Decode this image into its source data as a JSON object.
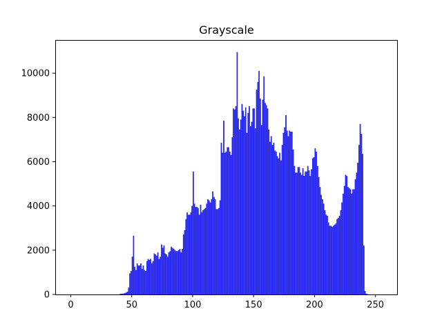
{
  "chart_data": {
    "type": "bar",
    "title": "Grayscale",
    "xlabel": "",
    "ylabel": "",
    "xlim": [
      -12.75,
      267.75
    ],
    "ylim": [
      0,
      11500
    ],
    "xticks": [
      0,
      50,
      100,
      150,
      200,
      250
    ],
    "yticks": [
      0,
      2000,
      4000,
      6000,
      8000,
      10000
    ],
    "grid": false,
    "legend": "none",
    "bar_color": "#0000ff",
    "bar_edge_color": "#1a1acc",
    "x": [
      0,
      1,
      2,
      3,
      4,
      5,
      6,
      7,
      8,
      9,
      10,
      11,
      12,
      13,
      14,
      15,
      16,
      17,
      18,
      19,
      20,
      21,
      22,
      23,
      24,
      25,
      26,
      27,
      28,
      29,
      30,
      31,
      32,
      33,
      34,
      35,
      36,
      37,
      38,
      39,
      40,
      41,
      42,
      43,
      44,
      45,
      46,
      47,
      48,
      49,
      50,
      51,
      52,
      53,
      54,
      55,
      56,
      57,
      58,
      59,
      60,
      61,
      62,
      63,
      64,
      65,
      66,
      67,
      68,
      69,
      70,
      71,
      72,
      73,
      74,
      75,
      76,
      77,
      78,
      79,
      80,
      81,
      82,
      83,
      84,
      85,
      86,
      87,
      88,
      89,
      90,
      91,
      92,
      93,
      94,
      95,
      96,
      97,
      98,
      99,
      100,
      101,
      102,
      103,
      104,
      105,
      106,
      107,
      108,
      109,
      110,
      111,
      112,
      113,
      114,
      115,
      116,
      117,
      118,
      119,
      120,
      121,
      122,
      123,
      124,
      125,
      126,
      127,
      128,
      129,
      130,
      131,
      132,
      133,
      134,
      135,
      136,
      137,
      138,
      139,
      140,
      141,
      142,
      143,
      144,
      145,
      146,
      147,
      148,
      149,
      150,
      151,
      152,
      153,
      154,
      155,
      156,
      157,
      158,
      159,
      160,
      161,
      162,
      163,
      164,
      165,
      166,
      167,
      168,
      169,
      170,
      171,
      172,
      173,
      174,
      175,
      176,
      177,
      178,
      179,
      180,
      181,
      182,
      183,
      184,
      185,
      186,
      187,
      188,
      189,
      190,
      191,
      192,
      193,
      194,
      195,
      196,
      197,
      198,
      199,
      200,
      201,
      202,
      203,
      204,
      205,
      206,
      207,
      208,
      209,
      210,
      211,
      212,
      213,
      214,
      215,
      216,
      217,
      218,
      219,
      220,
      221,
      222,
      223,
      224,
      225,
      226,
      227,
      228,
      229,
      230,
      231,
      232,
      233,
      234,
      235,
      236,
      237,
      238,
      239,
      240,
      241,
      242,
      243,
      244,
      245,
      246,
      247,
      248,
      249,
      250,
      251,
      252,
      253,
      254,
      255
    ],
    "values": [
      0,
      0,
      0,
      0,
      0,
      0,
      0,
      0,
      0,
      0,
      0,
      0,
      0,
      0,
      0,
      0,
      0,
      0,
      0,
      0,
      0,
      0,
      0,
      0,
      0,
      0,
      0,
      0,
      0,
      0,
      0,
      0,
      0,
      0,
      0,
      0,
      0,
      0,
      0,
      0,
      20,
      30,
      25,
      40,
      60,
      80,
      120,
      300,
      950,
      1050,
      1700,
      2650,
      1250,
      1100,
      1400,
      1300,
      1300,
      1400,
      1150,
      1300,
      1100,
      1050,
      1500,
      1600,
      1550,
      1600,
      1400,
      1500,
      1850,
      1800,
      1750,
      1900,
      1600,
      1700,
      2250,
      2100,
      2200,
      1850,
      1800,
      1700,
      1900,
      1950,
      2150,
      2100,
      2050,
      2000,
      1950,
      1950,
      2000,
      2050,
      1900,
      2050,
      2700,
      2900,
      3400,
      3700,
      3600,
      3600,
      3700,
      4000,
      5550,
      4100,
      3950,
      3950,
      3900,
      3600,
      4050,
      3700,
      3800,
      3850,
      3900,
      4100,
      4300,
      4250,
      4150,
      4300,
      4650,
      4400,
      4300,
      3850,
      3850,
      3900,
      4250,
      6850,
      6400,
      7850,
      6400,
      6450,
      6650,
      6650,
      6450,
      6300,
      7100,
      8400,
      8350,
      8500,
      10950,
      7950,
      7450,
      7900,
      8600,
      8300,
      8050,
      8450,
      7300,
      8200,
      8500,
      7600,
      7800,
      8400,
      8400,
      7500,
      9250,
      9600,
      10100,
      8850,
      7650,
      8800,
      9850,
      8650,
      8550,
      8400,
      7450,
      6900,
      7150,
      6750,
      6850,
      6500,
      6450,
      6250,
      6150,
      6400,
      6050,
      6750,
      7300,
      7550,
      8100,
      7400,
      7150,
      7400,
      7350,
      7350,
      6550,
      5800,
      5500,
      5500,
      5750,
      5750,
      5500,
      5400,
      5700,
      5350,
      5550,
      5550,
      5800,
      5600,
      5350,
      5650,
      6150,
      6200,
      6600,
      6450,
      5800,
      5300,
      4850,
      4500,
      4300,
      4100,
      3800,
      3600,
      3550,
      3250,
      3100,
      3100,
      3050,
      3100,
      3150,
      3200,
      3400,
      3450,
      3550,
      3800,
      4150,
      4550,
      4900,
      5400,
      5350,
      4850,
      4800,
      4750,
      4550,
      4750,
      4750,
      5200,
      5500,
      5950,
      6750,
      7700,
      7250,
      6350,
      2200,
      150,
      30,
      10,
      0,
      0,
      0,
      0,
      0,
      0,
      0,
      0,
      0,
      0,
      0,
      0
    ]
  }
}
